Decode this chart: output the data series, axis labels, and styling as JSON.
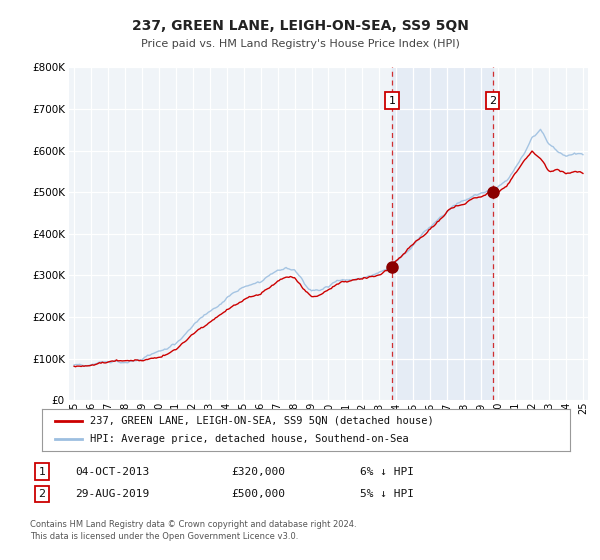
{
  "title": "237, GREEN LANE, LEIGH-ON-SEA, SS9 5QN",
  "subtitle": "Price paid vs. HM Land Registry's House Price Index (HPI)",
  "ylim": [
    0,
    800000
  ],
  "yticks": [
    0,
    100000,
    200000,
    300000,
    400000,
    500000,
    600000,
    700000,
    800000
  ],
  "hpi_color": "#9dbfe0",
  "price_color": "#cc0000",
  "sale1_date_num": 2013.75,
  "sale1_price": 320000,
  "sale2_date_num": 2019.67,
  "sale2_price": 500000,
  "legend_line1": "237, GREEN LANE, LEIGH-ON-SEA, SS9 5QN (detached house)",
  "legend_line2": "HPI: Average price, detached house, Southend-on-Sea",
  "table_row1_num": "1",
  "table_row1_date": "04-OCT-2013",
  "table_row1_price": "£320,000",
  "table_row1_hpi": "6% ↓ HPI",
  "table_row2_num": "2",
  "table_row2_date": "29-AUG-2019",
  "table_row2_price": "£500,000",
  "table_row2_hpi": "5% ↓ HPI",
  "footnote1": "Contains HM Land Registry data © Crown copyright and database right 2024.",
  "footnote2": "This data is licensed under the Open Government Licence v3.0.",
  "background_color": "#ffffff",
  "plot_bg_color": "#f0f4f8"
}
